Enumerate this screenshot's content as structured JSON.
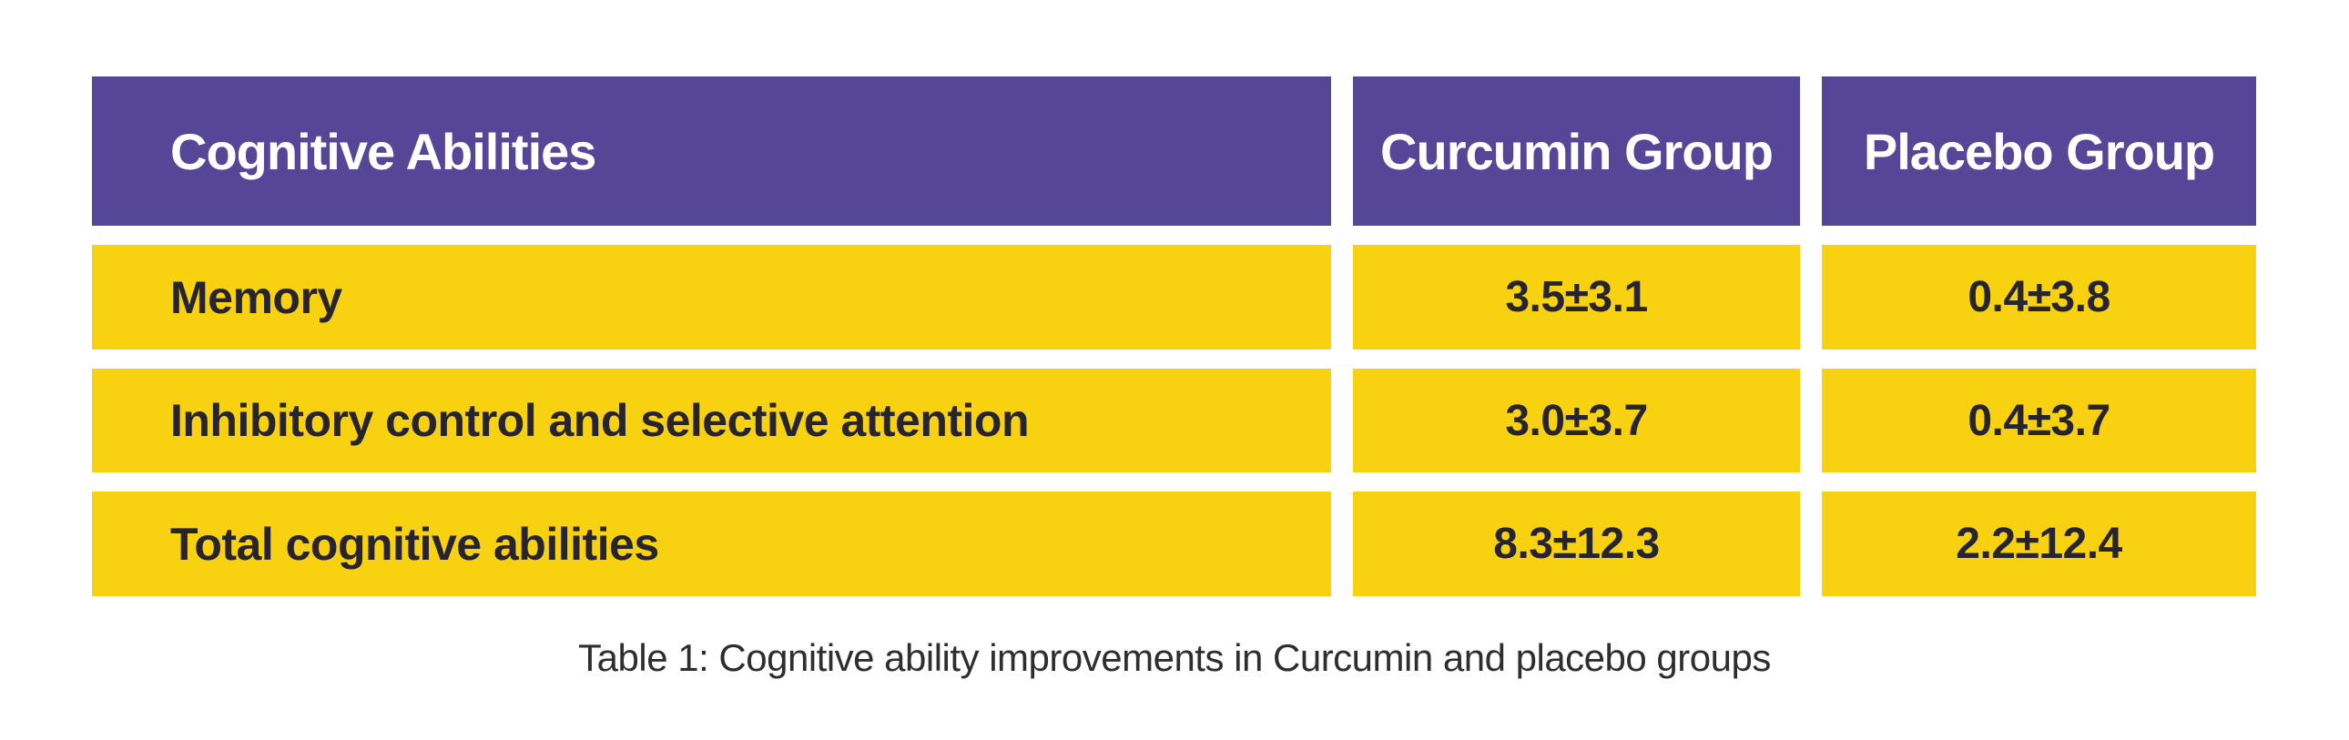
{
  "colors": {
    "header_bg": "#554697",
    "header_text": "#ffffff",
    "row_bg": "#F8D111",
    "row_text": "#26242E",
    "caption_text": "#2E2E2E",
    "page_bg": "#ffffff"
  },
  "table": {
    "columns": [
      "Cognitive Abilities",
      "Curcumin Group",
      "Placebo Group"
    ],
    "rows": [
      {
        "label": "Memory",
        "curcumin": "3.5±3.1",
        "placebo": "0.4±3.8"
      },
      {
        "label": "Inhibitory control and selective attention",
        "curcumin": "3.0±3.7",
        "placebo": "0.4±3.7"
      },
      {
        "label": "Total cognitive abilities",
        "curcumin": "8.3±12.3",
        "placebo": "2.2±12.4"
      }
    ]
  },
  "caption": "Table 1: Cognitive ability improvements in Curcumin and placebo groups",
  "chart_data": {
    "type": "table",
    "title": "Table 1: Cognitive ability improvements in Curcumin and placebo groups",
    "columns": [
      "Cognitive Abilities",
      "Curcumin Group",
      "Placebo Group"
    ],
    "rows": [
      [
        "Memory",
        "3.5±3.1",
        "0.4±3.8"
      ],
      [
        "Inhibitory control and selective attention",
        "3.0±3.7",
        "0.4±3.7"
      ],
      [
        "Total cognitive abilities",
        "8.3±12.3",
        "2.2±12.4"
      ]
    ],
    "values": [
      {
        "ability": "Memory",
        "curcumin_mean": 3.5,
        "curcumin_sd": 3.1,
        "placebo_mean": 0.4,
        "placebo_sd": 3.8
      },
      {
        "ability": "Inhibitory control and selective attention",
        "curcumin_mean": 3.0,
        "curcumin_sd": 3.7,
        "placebo_mean": 0.4,
        "placebo_sd": 3.7
      },
      {
        "ability": "Total cognitive abilities",
        "curcumin_mean": 8.3,
        "curcumin_sd": 12.3,
        "placebo_mean": 2.2,
        "placebo_sd": 12.4
      }
    ],
    "legend_position": "none",
    "grid": false
  }
}
